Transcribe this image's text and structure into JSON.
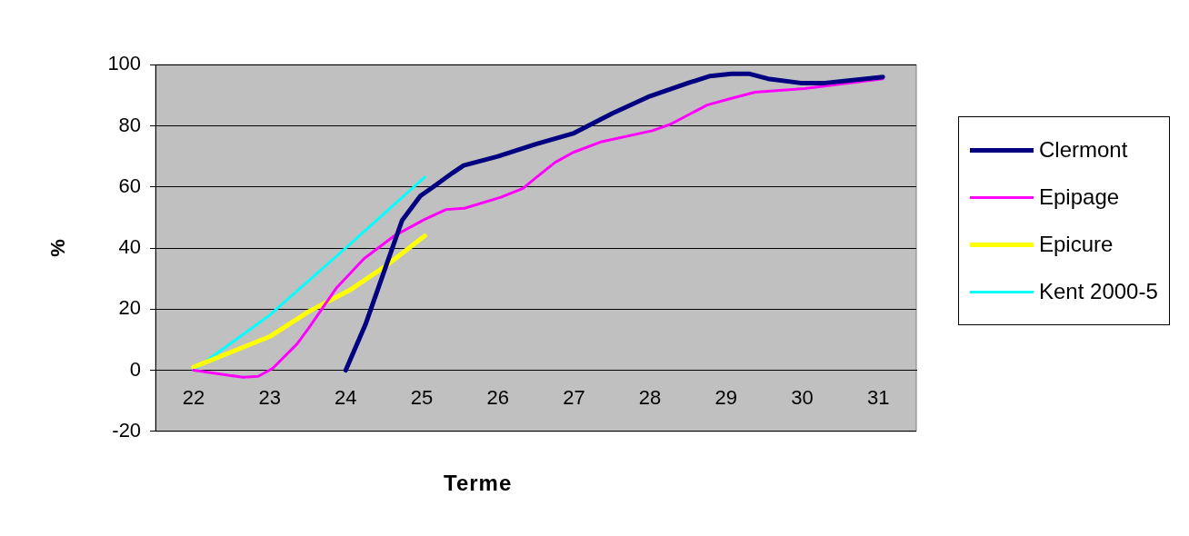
{
  "chart_data": {
    "type": "line",
    "xlabel": "Terme",
    "ylabel": "%",
    "xlim": [
      21.5,
      31.5
    ],
    "xticks": [
      22,
      23,
      24,
      25,
      26,
      27,
      28,
      29,
      30,
      31
    ],
    "ylim": [
      -20,
      100
    ],
    "yticks": [
      -20,
      0,
      20,
      40,
      60,
      80,
      100
    ],
    "grid": "y",
    "legend": "right",
    "marker": "none",
    "line_style": "solid",
    "series": [
      {
        "name": "Clermont",
        "color": "#000080",
        "x": [
          24.0,
          24.26,
          24.5,
          24.74,
          24.98,
          25.15,
          25.4,
          25.55,
          26.0,
          26.5,
          27.0,
          27.5,
          28.0,
          28.5,
          28.79,
          29.07,
          29.31,
          29.55,
          29.98,
          30.3,
          31.06
        ],
        "values": [
          0,
          15,
          32,
          49,
          57,
          60,
          64.5,
          67,
          70,
          74,
          77.6,
          84,
          89.7,
          94,
          96.3,
          97,
          97,
          95.4,
          94,
          94,
          96
        ]
      },
      {
        "name": "Epipage",
        "color": "#ff00ff",
        "x": [
          22.0,
          22.65,
          22.85,
          23.04,
          23.36,
          23.52,
          23.88,
          24.24,
          24.64,
          25.04,
          25.32,
          25.56,
          26.04,
          26.33,
          26.5,
          26.75,
          26.99,
          27.35,
          28.03,
          28.27,
          28.75,
          29.07,
          29.38,
          30.03,
          31.06
        ],
        "values": [
          0,
          -2.3,
          -2,
          0.6,
          8.6,
          14,
          27,
          36.5,
          44,
          49.4,
          52.6,
          53,
          56.6,
          59.5,
          63,
          68,
          71.3,
          74.7,
          78.4,
          80.5,
          86.8,
          89,
          91,
          92.2,
          95.4
        ]
      },
      {
        "name": "Epicure",
        "color": "#ffff00",
        "x": [
          22.0,
          23.0,
          23.52,
          24.04,
          24.52,
          25.04
        ],
        "values": [
          1,
          11,
          19.3,
          26,
          34,
          44
        ]
      },
      {
        "name": "Kent 2000-5",
        "color": "#00ffff",
        "x": [
          22.0,
          23.0,
          24.0,
          25.04
        ],
        "values": [
          0,
          18,
          40,
          63.2
        ]
      }
    ]
  }
}
